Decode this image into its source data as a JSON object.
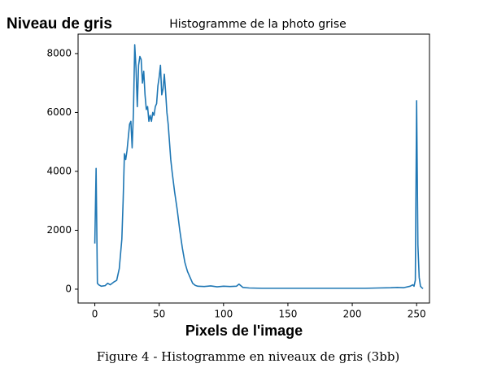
{
  "chart_data": {
    "type": "line",
    "title": "Histogramme de la photo grise",
    "ylabel": "Niveau de gris",
    "xlabel": "Pixels de l'image",
    "caption": "Figure 4 - Histogramme en niveaux de gris (3bb)",
    "color": "#1f77b4",
    "xlim": [
      -13,
      260
    ],
    "ylim": [
      -470,
      8660
    ],
    "xticks": [
      0,
      50,
      100,
      150,
      200,
      250
    ],
    "yticks": [
      0,
      2000,
      4000,
      6000,
      8000
    ],
    "grid": false,
    "x": [
      0,
      1,
      2,
      3,
      5,
      8,
      10,
      12,
      15,
      17,
      19,
      21,
      22,
      23,
      24,
      25,
      27,
      28,
      29,
      30,
      31,
      32,
      33,
      34,
      35,
      36,
      37,
      38,
      39,
      40,
      41,
      42,
      43,
      44,
      45,
      46,
      47,
      48,
      49,
      50,
      51,
      52,
      53,
      54,
      55,
      56,
      57,
      58,
      59,
      60,
      62,
      64,
      66,
      68,
      70,
      72,
      74,
      76,
      78,
      80,
      85,
      90,
      95,
      100,
      105,
      110,
      112,
      115,
      120,
      130,
      140,
      150,
      160,
      170,
      180,
      190,
      200,
      210,
      220,
      230,
      235,
      240,
      245,
      247,
      248,
      249,
      250,
      251,
      252,
      253,
      254,
      255
    ],
    "values": [
      1550,
      4100,
      200,
      150,
      100,
      120,
      200,
      150,
      250,
      300,
      700,
      1700,
      3000,
      4600,
      4400,
      4700,
      5600,
      5700,
      4800,
      6000,
      8300,
      7500,
      6200,
      7600,
      7900,
      7800,
      7000,
      7400,
      6600,
      6100,
      6200,
      5700,
      5900,
      5700,
      6000,
      5900,
      6200,
      6300,
      6900,
      7200,
      7600,
      6600,
      6800,
      7300,
      6700,
      6000,
      5600,
      5000,
      4400,
      4000,
      3300,
      2700,
      2000,
      1400,
      900,
      600,
      400,
      200,
      130,
      100,
      90,
      110,
      80,
      100,
      90,
      100,
      170,
      60,
      40,
      30,
      30,
      30,
      30,
      30,
      30,
      30,
      30,
      30,
      40,
      50,
      60,
      50,
      100,
      150,
      100,
      300,
      6400,
      1500,
      400,
      100,
      50,
      20
    ]
  }
}
